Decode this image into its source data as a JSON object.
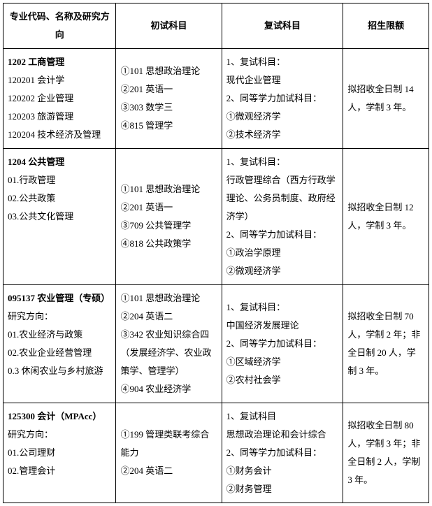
{
  "headers": {
    "major": "专业代码、名称及研究方向",
    "prelim": "初试科目",
    "retest": "复试科目",
    "quota": "招生限额"
  },
  "rows": [
    {
      "majorTitle": "1202 工商管理",
      "directions": "120201 会计学\n120202 企业管理\n120203 旅游管理\n120204 技术经济及管理",
      "prelim": "①101 思想政治理论\n②201 英语一\n③303 数学三\n④815 管理学",
      "retest": "1、复试科目：\n现代企业管理\n2、同等学力加试科目：\n①微观经济学\n②技术经济学",
      "quota": "拟招收全日制 14 人，学制 3 年。"
    },
    {
      "majorTitle": "1204 公共管理",
      "directions": "01.行政管理\n02.公共政策\n03.公共文化管理",
      "prelim": "①101 思想政治理论\n②201 英语一\n③709 公共管理学\n④818 公共政策学",
      "retest": "1、复试科目：\n行政管理综合（西方行政学理论、公务员制度、政府经济学）\n2、同等学力加试科目：\n①政治学原理\n②微观经济学",
      "quota": "拟招收全日制 12 人，学制 3 年。"
    },
    {
      "majorTitle": "095137 农业管理（专硕）",
      "directions": "研究方向：\n01.农业经济与政策\n02.农业企业经营管理\n0.3 休闲农业与乡村旅游",
      "prelim": "①101 思想政治理论\n②204 英语二\n③342 农业知识综合四（发展经济学、农业政策学、管理学）\n④904 农业经济学",
      "retest": "1、复试科目：\n中国经济发展理论\n2、同等学力加试科目：\n①区域经济学\n②农村社会学",
      "quota": "拟招收全日制 70 人，学制 2 年；非全日制 20 人，学制 3 年。"
    },
    {
      "majorTitle": "125300 会计（MPAcc）",
      "directions": "研究方向：\n01.公司理财\n02.管理会计",
      "prelim": "①199 管理类联考综合能力\n②204 英语二",
      "retest": "1、复试科目\n思想政治理论和会计综合\n2、同等学力加试科目：\n①财务会计\n②财务管理",
      "quota": "拟招收全日制 80 人，学制 3 年；非全日制 2 人，学制 3 年。"
    }
  ]
}
